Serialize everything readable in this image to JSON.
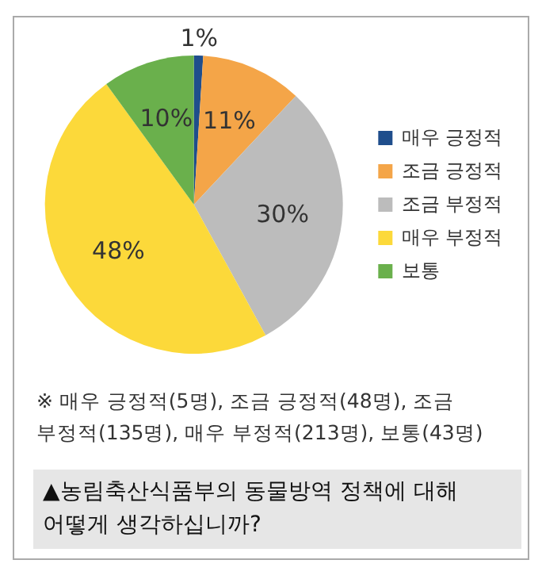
{
  "chart_data": {
    "type": "pie",
    "categories": [
      "매우 긍정적",
      "조금 긍정적",
      "조금 부정적",
      "매우 부정적",
      "보통"
    ],
    "values": [
      1,
      11,
      30,
      48,
      10
    ],
    "colors": [
      "#1f4e8c",
      "#f4a548",
      "#bcbcbc",
      "#fcd93a",
      "#6ab04c"
    ],
    "value_labels": [
      "1%",
      "11%",
      "30%",
      "48%",
      "10%"
    ],
    "legend": "right",
    "annotations": [
      "※ 매우 긍정적(5명), 조금 긍정적(48명), 조금 부정적(135명), 매우 부정적(213명), 보통(43명)",
      "▲농림축산식품부의 동물방역 정책에 대해 어떻게 생각하십니까?"
    ]
  }
}
